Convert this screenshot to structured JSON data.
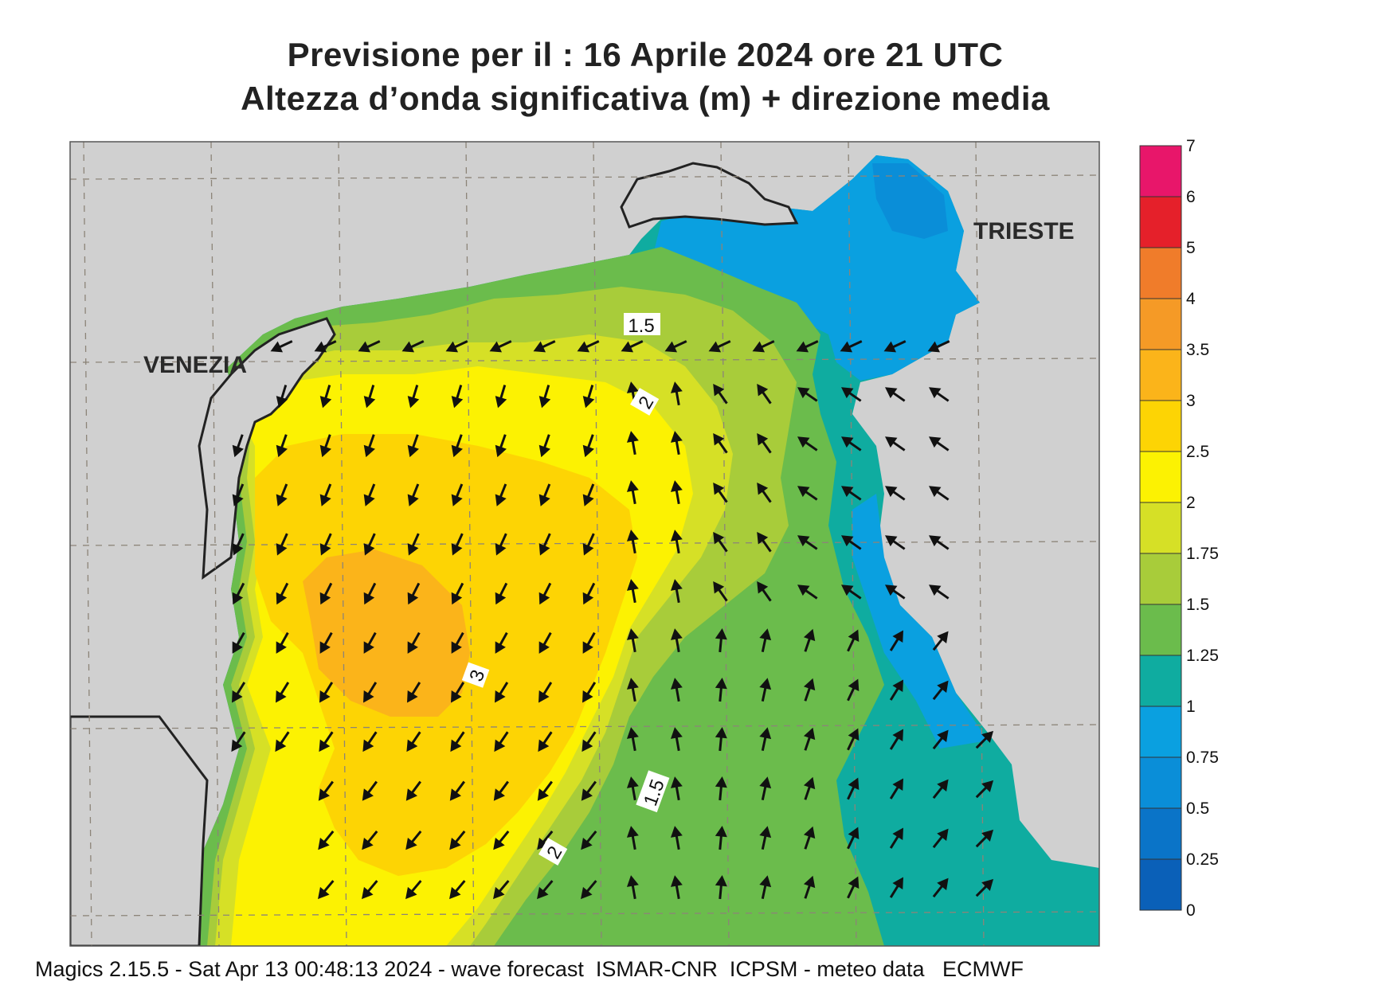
{
  "header": {
    "title_line1": "Previsione per il  :  16   Aprile  2024   ore 21 UTC",
    "title_line2": "Altezza d’onda significativa (m) + direzione media"
  },
  "map": {
    "cities": [
      {
        "name": "VENEZIA"
      },
      {
        "name": "TRIESTE"
      }
    ],
    "contour_labels": [
      "1.5",
      "2",
      "3",
      "1.5",
      "2"
    ],
    "land_color": "#d0d0d0",
    "graticule": "dashed"
  },
  "legend": {
    "labels": [
      "7",
      "6",
      "5",
      "4",
      "3.5",
      "3",
      "2.5",
      "2",
      "1.75",
      "1.5",
      "1.25",
      "1",
      "0.75",
      "0.5",
      "0.25",
      "0"
    ],
    "colors": [
      "#e8166a",
      "#e5202a",
      "#f07c2a",
      "#f59a26",
      "#fbb41a",
      "#fdd404",
      "#fcf202",
      "#d6e026",
      "#a8cc3a",
      "#6bbc4c",
      "#0faca0",
      "#0aa0e0",
      "#0a8ed8",
      "#0a74c8",
      "#0a60b8"
    ]
  },
  "footer": {
    "text": "Magics 2.15.5 - Sat Apr 13 00:48:13 2024 - wave forecast  ISMAR-CNR  ICPSM - meteo data   ECMWF"
  }
}
